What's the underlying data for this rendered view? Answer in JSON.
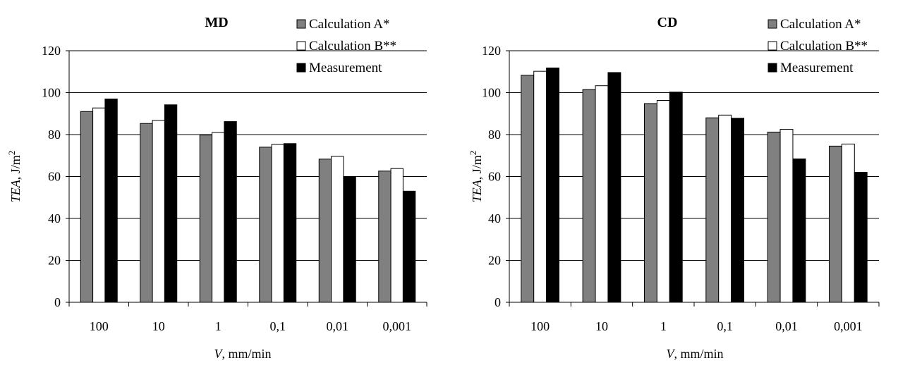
{
  "chart_data": [
    {
      "type": "bar",
      "title": "MD",
      "xlabel": {
        "symbol": "V",
        "unit": ", mm/min"
      },
      "ylabel": {
        "symbol": "TEA",
        "unit": ", J/m",
        "sup": "2"
      },
      "categories": [
        "100",
        "10",
        "1",
        "0,1",
        "0,01",
        "0,001"
      ],
      "ylim": [
        0,
        120
      ],
      "yticks": [
        "0",
        "20",
        "40",
        "60",
        "80",
        "100",
        "120"
      ],
      "grid": "horizontal",
      "legend_position": "top-right",
      "series": [
        {
          "name": "Calculation A*",
          "values": [
            91.0,
            85.3,
            79.8,
            74.0,
            68.3,
            62.6
          ],
          "color": "#808080"
        },
        {
          "name": "Calculation B**",
          "values": [
            92.7,
            86.8,
            81.0,
            75.3,
            69.6,
            63.8
          ],
          "color": "#ffffff"
        },
        {
          "name": "Measurement",
          "values": [
            97.0,
            94.2,
            86.2,
            75.7,
            60.0,
            53.0
          ],
          "color": "#000000"
        }
      ]
    },
    {
      "type": "bar",
      "title": "CD",
      "xlabel": {
        "symbol": "V",
        "unit": ", mm/min"
      },
      "ylabel": {
        "symbol": "TEA",
        "unit": ", J/m",
        "sup": "2"
      },
      "categories": [
        "100",
        "10",
        "1",
        "0,1",
        "0,01",
        "0,001"
      ],
      "ylim": [
        0,
        120
      ],
      "yticks": [
        "0",
        "20",
        "40",
        "60",
        "80",
        "100",
        "120"
      ],
      "grid": "horizontal",
      "legend_position": "top-right",
      "series": [
        {
          "name": "Calculation A*",
          "values": [
            108.3,
            101.5,
            94.8,
            88.0,
            81.2,
            74.5
          ],
          "color": "#808080"
        },
        {
          "name": "Calculation B**",
          "values": [
            110.2,
            103.3,
            96.3,
            89.3,
            82.5,
            75.5
          ],
          "color": "#ffffff"
        },
        {
          "name": "Measurement",
          "values": [
            111.8,
            109.6,
            100.3,
            87.8,
            68.4,
            62.0
          ],
          "color": "#000000"
        }
      ]
    }
  ]
}
